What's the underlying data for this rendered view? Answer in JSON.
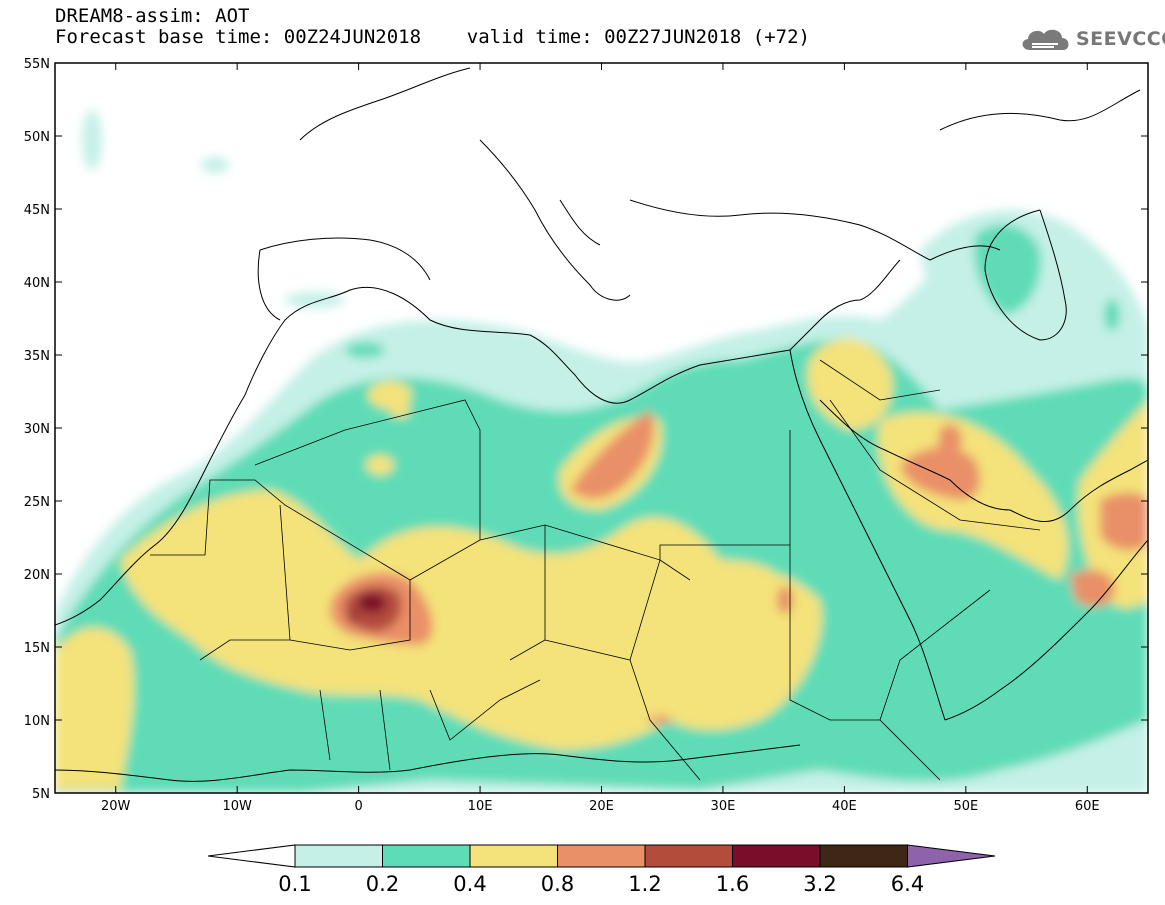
{
  "header": {
    "line1": "DREAM8-assim: AOT",
    "line2": "Forecast base time: 00Z24JUN2018    valid time: 00Z27JUN2018 (+72)"
  },
  "logo": {
    "text": "SEEVCCC",
    "icon": "cloud-icon",
    "color": "#777777"
  },
  "map": {
    "lon_range": [
      -25,
      65
    ],
    "lat_range": [
      5,
      55
    ],
    "lat_ticks": [
      {
        "value": 55,
        "label": "55N"
      },
      {
        "value": 50,
        "label": "50N"
      },
      {
        "value": 45,
        "label": "45N"
      },
      {
        "value": 40,
        "label": "40N"
      },
      {
        "value": 35,
        "label": "35N"
      },
      {
        "value": 30,
        "label": "30N"
      },
      {
        "value": 25,
        "label": "25N"
      },
      {
        "value": 20,
        "label": "20N"
      },
      {
        "value": 15,
        "label": "15N"
      },
      {
        "value": 10,
        "label": "10N"
      },
      {
        "value": 5,
        "label": "5N"
      }
    ],
    "lon_ticks": [
      {
        "value": -20,
        "label": "20W"
      },
      {
        "value": -10,
        "label": "10W"
      },
      {
        "value": 0,
        "label": "0"
      },
      {
        "value": 10,
        "label": "10E"
      },
      {
        "value": 20,
        "label": "20E"
      },
      {
        "value": 30,
        "label": "30E"
      },
      {
        "value": 40,
        "label": "40E"
      },
      {
        "value": 50,
        "label": "50E"
      },
      {
        "value": 60,
        "label": "60E"
      }
    ]
  },
  "colorbar": {
    "labels": [
      "0.1",
      "0.2",
      "0.4",
      "0.8",
      "1.2",
      "1.6",
      "3.2",
      "6.4"
    ],
    "low_color": "#ffffff",
    "bin_colors": [
      "#c4f0e7",
      "#5edcb7",
      "#f4e27a",
      "#e99068",
      "#b44c3c",
      "#7a0d2a",
      "#3e2716"
    ],
    "high_color": "#8e63ab"
  }
}
